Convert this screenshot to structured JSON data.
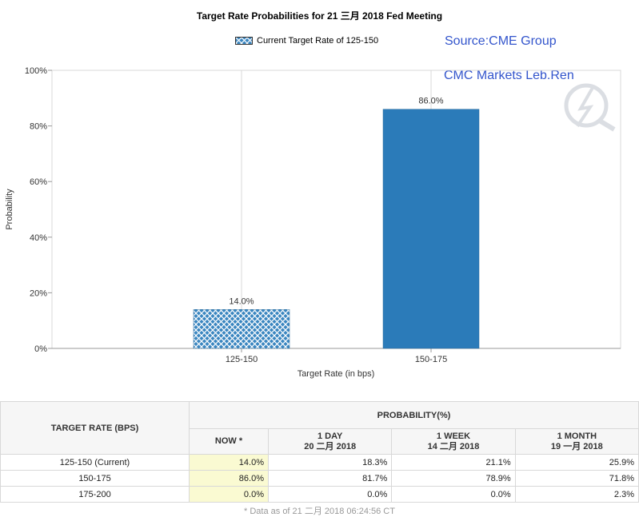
{
  "chart_data": {
    "type": "bar",
    "title": "Target Rate Probabilities for 21 三月 2018  Fed Meeting",
    "legend": {
      "label": "Current Target Rate of 125-150",
      "placement": "top-center"
    },
    "categories": [
      "125-150",
      "150-175"
    ],
    "values": [
      14.0,
      86.0
    ],
    "data_labels": [
      "14.0%",
      "86.0%"
    ],
    "bar_styles": [
      "hatched",
      "solid"
    ],
    "xlabel": "Target Rate (in bps)",
    "ylabel": "Probability",
    "ylim": [
      0,
      100
    ],
    "yticks": [
      "0%",
      "20%",
      "40%",
      "60%",
      "80%",
      "100%"
    ],
    "grid": "vertical",
    "colors": {
      "bar": "#2b7bb9",
      "hatch_bg": "#3a86c0",
      "hatch_line": "#ffffff",
      "grid": "#d9d9d9"
    }
  },
  "annotations": {
    "source": "Source:CME Group",
    "credit": "CMC Markets Leb.Ren"
  },
  "table": {
    "rate_header": "TARGET RATE (BPS)",
    "prob_header": "PROBABILITY(%)",
    "columns": [
      {
        "line1": "NOW *",
        "line2": ""
      },
      {
        "line1": "1 DAY",
        "line2": "20 二月 2018"
      },
      {
        "line1": "1 WEEK",
        "line2": "14 二月 2018"
      },
      {
        "line1": "1 MONTH",
        "line2": "19 一月 2018"
      }
    ],
    "rows": [
      {
        "rate": "125-150 (Current)",
        "values": [
          "14.0%",
          "18.3%",
          "21.1%",
          "25.9%"
        ]
      },
      {
        "rate": "150-175",
        "values": [
          "86.0%",
          "81.7%",
          "78.9%",
          "71.8%"
        ]
      },
      {
        "rate": "175-200",
        "values": [
          "0.0%",
          "0.0%",
          "0.0%",
          "2.3%"
        ]
      }
    ],
    "footnote": "* Data as of 21 二月 2018 06:24:56 CT"
  }
}
